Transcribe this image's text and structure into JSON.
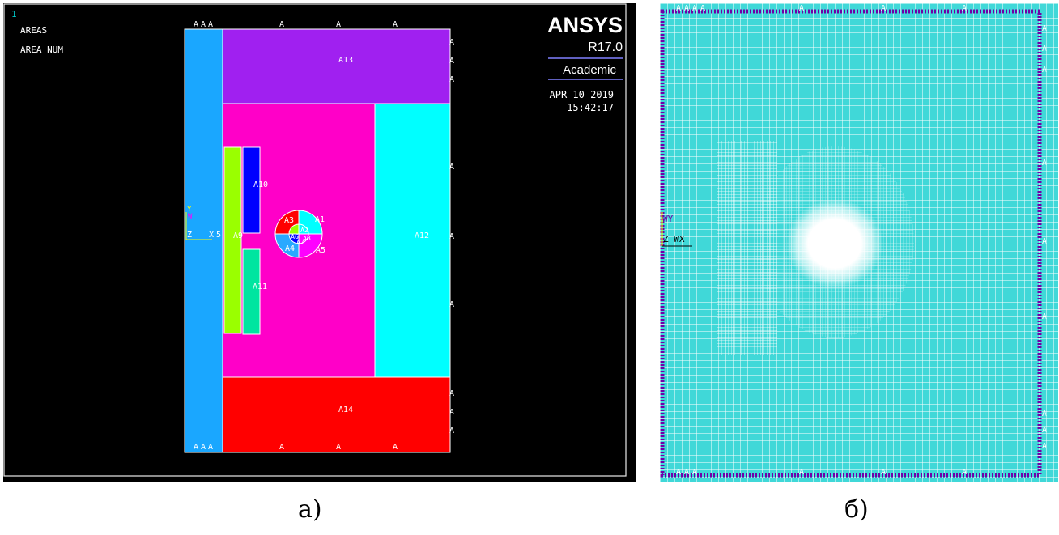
{
  "panel_a": {
    "window_number": "1",
    "legend": [
      "AREAS",
      "AREA NUM"
    ],
    "brand": {
      "name": "ANSYS",
      "version": "R17.0",
      "edition": "Academic"
    },
    "date": "APR 10 2019",
    "time": "15:42:17",
    "areas": [
      {
        "id": "A13",
        "fill": "#a020f0"
      },
      {
        "id": "A12",
        "fill": "#00ffff"
      },
      {
        "id": "A14",
        "fill": "#ff0000"
      },
      {
        "id": "A10",
        "fill": "#0000ff"
      },
      {
        "id": "A11",
        "fill": "#00e5a0"
      },
      {
        "id": "A9",
        "fill": "#9aff00"
      },
      {
        "id": "A1",
        "fill": "#00ffff"
      },
      {
        "id": "A3",
        "fill": "#ff0000"
      },
      {
        "id": "A4",
        "fill": "#29a9ff"
      },
      {
        "id": "A5",
        "fill": "#ff00ff"
      },
      {
        "id": "A2",
        "fill": "#00ffff"
      },
      {
        "id": "A6",
        "fill": "#9aff00"
      },
      {
        "id": "A7",
        "fill": "#0000ff"
      },
      {
        "id": "A8",
        "fill": "#ff00ff"
      }
    ],
    "boundary_marker": "A",
    "axis": {
      "y": "Y",
      "z": "Z",
      "x": "X",
      "w": "W"
    },
    "left_label": "5"
  },
  "panel_b": {
    "boundary_marker": "A",
    "axis_wy": "WY",
    "axis_zx": "Z WX",
    "mesh_color": "#40d8d8"
  },
  "captions": {
    "a": "а)",
    "b": "б)"
  }
}
